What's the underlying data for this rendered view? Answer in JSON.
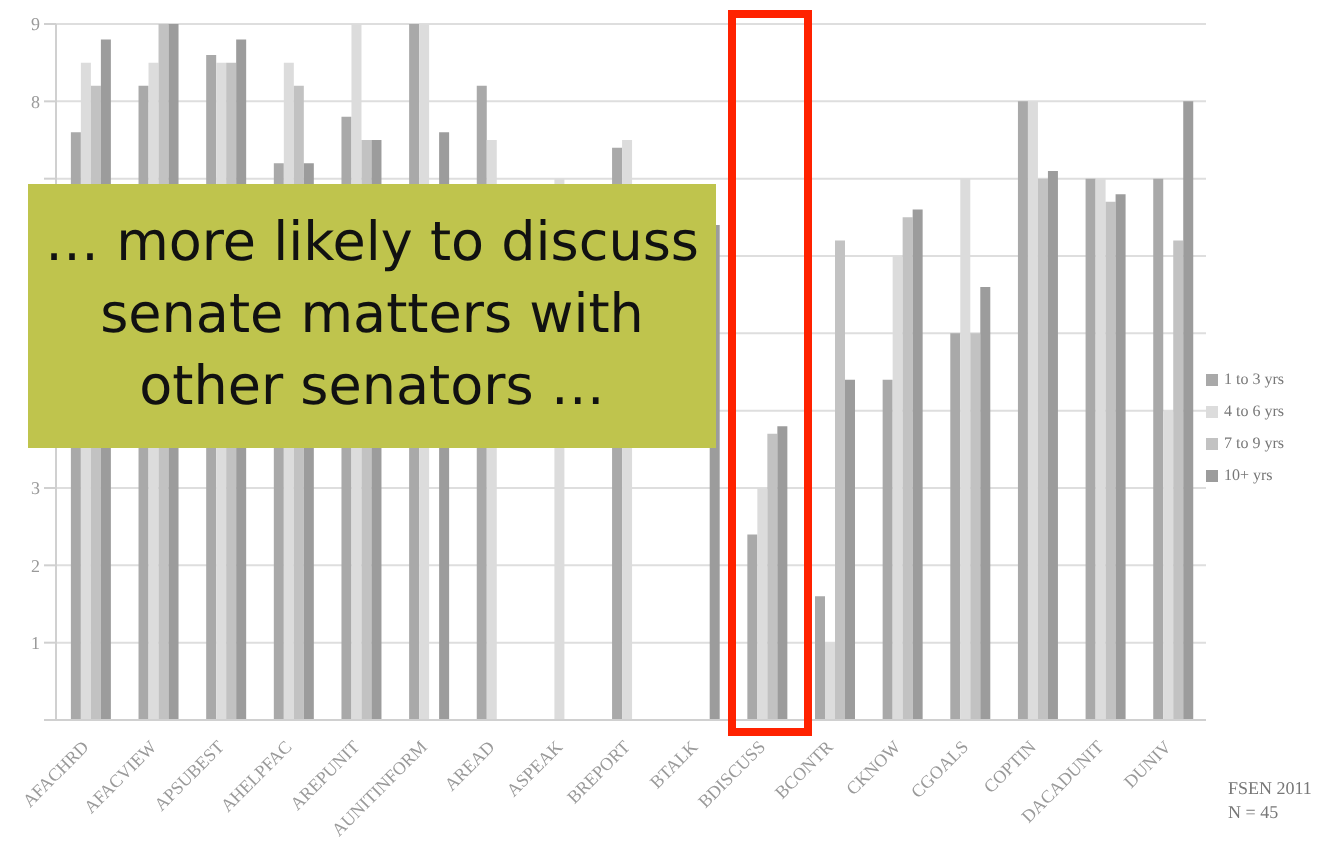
{
  "chart_data": {
    "type": "bar",
    "categories": [
      "AFACHRD",
      "AFACVIEW",
      "APSUBEST",
      "AHELPFAC",
      "AREPUNIT",
      "AUNITINFORM",
      "AREAD",
      "ASPEAK",
      "BREPORT",
      "BTALK",
      "BDISCUSS",
      "BCONTR",
      "CKNOW",
      "CGOALS",
      "COPTIN",
      "DACADUNIT",
      "DUNIV"
    ],
    "series": [
      {
        "name": "1 to 3 yrs",
        "color": "#a9a9a9",
        "values": [
          7.6,
          8.2,
          8.6,
          7.2,
          7.8,
          9,
          8.2,
          null,
          7.4,
          null,
          2.4,
          1.6,
          4.4,
          5,
          8,
          7,
          7
        ]
      },
      {
        "name": "4 to 6 yrs",
        "color": "#dcdcdc",
        "values": [
          8.5,
          8.5,
          8.5,
          8.5,
          9,
          9,
          7.5,
          7,
          7.5,
          null,
          3,
          1,
          6,
          7,
          8,
          7,
          4
        ]
      },
      {
        "name": "7 to 9 yrs",
        "color": "#c2c2c2",
        "values": [
          8.2,
          9,
          8.5,
          8.2,
          7.5,
          null,
          null,
          null,
          null,
          null,
          3.7,
          6.2,
          6.5,
          5,
          7,
          6.7,
          6.2
        ]
      },
      {
        "name": "10+ yrs",
        "color": "#9c9c9c",
        "values": [
          8.8,
          9,
          8.8,
          7.2,
          7.5,
          7.6,
          null,
          null,
          null,
          6.4,
          3.8,
          4.4,
          6.6,
          5.6,
          7.1,
          6.8,
          8
        ]
      }
    ],
    "ylim": [
      0,
      9
    ],
    "yticks": [
      {
        "value": 0,
        "label": null
      },
      1,
      2,
      3,
      {
        "value": 4,
        "label": null
      },
      {
        "value": 5,
        "label": null
      },
      {
        "value": 6,
        "label": null
      },
      {
        "value": 7,
        "label": null
      },
      8,
      9
    ],
    "grid": "y",
    "legend": "right",
    "annotations": [
      "… more likely to discuss senate matters with other senators …",
      "FSEN 2011",
      "N = 45"
    ]
  }
}
